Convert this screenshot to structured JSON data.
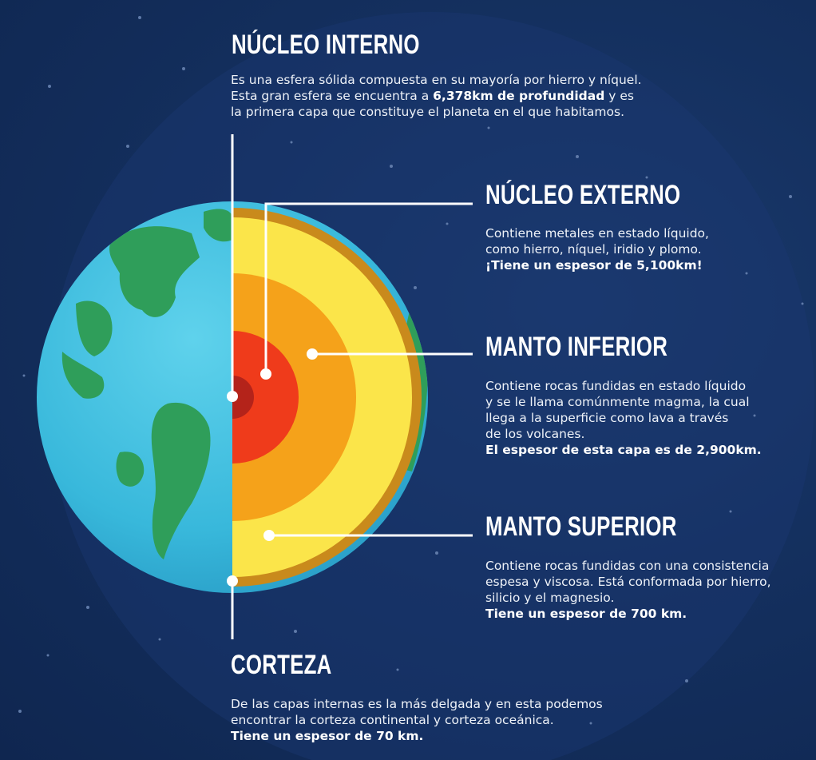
{
  "layers": {
    "inner_core": {
      "title": "NÚCLEO INTERNO",
      "line1": "Es una esfera sólida compuesta en su mayoría por hierro y níquel.",
      "line2_pre": "Esta gran esfera se encuentra a ",
      "line2_bold": "6,378km de profundidad",
      "line2_post": " y es",
      "line3": "la primera capa que constituye el planeta en el que habitamos."
    },
    "outer_core": {
      "title": "NÚCLEO EXTERNO",
      "line1": "Contiene metales en estado líquido,",
      "line2": "como hierro, níquel, iridio y plomo.",
      "line3_bold": "¡Tiene un espesor de 5,100km!"
    },
    "lower_mantle": {
      "title": "MANTO INFERIOR",
      "line1": "Contiene rocas fundidas en estado líquido",
      "line2": "y se le llama comúnmente magma, la cual",
      "line3": "llega a la superficie como lava a través",
      "line4": "de los volcanes.",
      "line5_bold": "El espesor de esta capa es de 2,900km."
    },
    "upper_mantle": {
      "title": "MANTO SUPERIOR",
      "line1": "Contiene rocas fundidas con una consistencia",
      "line2": "espesa y viscosa. Está conformada por hierro,",
      "line3": "silicio y el magnesio.",
      "line4_bold": "Tiene un espesor de 700 km."
    },
    "crust": {
      "title": "CORTEZA",
      "line1": "De las capas internas es la más delgada y en esta podemos",
      "line2": "encontrar la corteza continental y corteza oceánica.",
      "line3_bold": "Tiene un espesor de 70 km."
    }
  },
  "colors": {
    "background": "#14305f",
    "ocean": "#3cc0e0",
    "land": "#2f9e5a",
    "crust": "#c98a1c",
    "upper_mantle": "#fbe54a",
    "lower_mantle": "#f5a21a",
    "outer_core": "#ef3b1b",
    "inner_core": "#b4231a",
    "callout_line": "#ffffff"
  }
}
